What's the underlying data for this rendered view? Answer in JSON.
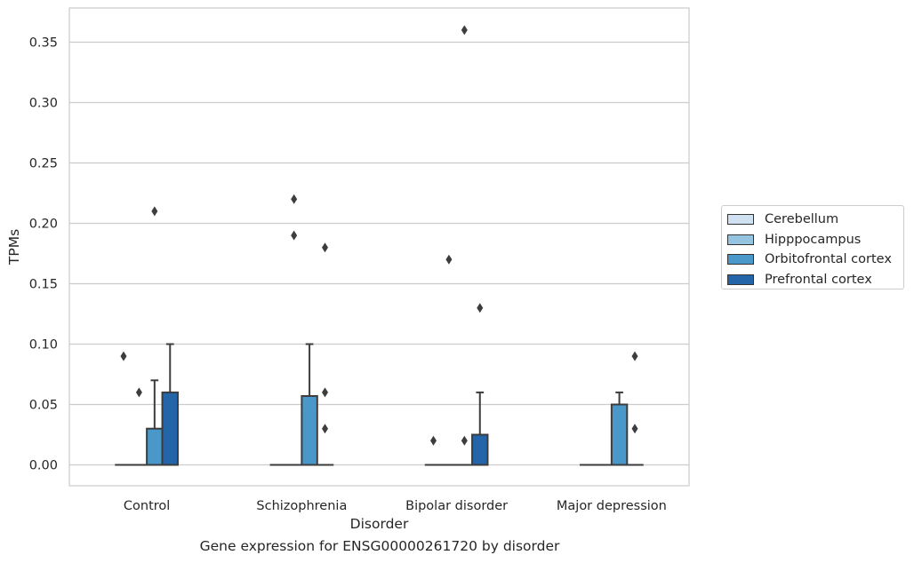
{
  "chart_data": {
    "type": "box",
    "xlabel": "Disorder",
    "ylabel": "TPMs",
    "caption": "Gene expression for ENSG00000261720 by disorder",
    "categories": [
      "Control",
      "Schizophrenia",
      "Bipolar disorder",
      "Major depression"
    ],
    "ylim": [
      -0.018,
      0.379
    ],
    "yticks": [
      0.0,
      0.05,
      0.1,
      0.15,
      0.2,
      0.25,
      0.3,
      0.35
    ],
    "ytick_labels": [
      "0.00",
      "0.05",
      "0.10",
      "0.15",
      "0.20",
      "0.25",
      "0.30",
      "0.35"
    ],
    "grid": true,
    "legend_position": "right",
    "series": [
      {
        "name": "Cerebellum",
        "color": "#d0e1f2",
        "boxes": [
          {
            "q1": 0,
            "median": 0,
            "q3": 0,
            "whisker_low": 0,
            "whisker_high": 0,
            "outliers": [
              0.09
            ]
          },
          {
            "q1": 0,
            "median": 0,
            "q3": 0,
            "whisker_low": 0,
            "whisker_high": 0,
            "outliers": []
          },
          {
            "q1": 0,
            "median": 0,
            "q3": 0,
            "whisker_low": 0,
            "whisker_high": 0,
            "outliers": [
              0.02
            ]
          },
          {
            "q1": 0,
            "median": 0,
            "q3": 0,
            "whisker_low": 0,
            "whisker_high": 0,
            "outliers": []
          }
        ]
      },
      {
        "name": "Hipppocampus",
        "color": "#94c4df",
        "boxes": [
          {
            "q1": 0,
            "median": 0,
            "q3": 0,
            "whisker_low": 0,
            "whisker_high": 0,
            "outliers": [
              0.06
            ]
          },
          {
            "q1": 0,
            "median": 0,
            "q3": 0,
            "whisker_low": 0,
            "whisker_high": 0,
            "outliers": [
              0.22,
              0.19
            ]
          },
          {
            "q1": 0,
            "median": 0,
            "q3": 0,
            "whisker_low": 0,
            "whisker_high": 0,
            "outliers": [
              0.17
            ]
          },
          {
            "q1": 0,
            "median": 0,
            "q3": 0,
            "whisker_low": 0,
            "whisker_high": 0,
            "outliers": []
          }
        ]
      },
      {
        "name": "Orbitofrontal cortex",
        "color": "#4a98c9",
        "boxes": [
          {
            "q1": 0,
            "median": 0,
            "q3": 0.03,
            "whisker_low": 0,
            "whisker_high": 0.07,
            "outliers": [
              0.21
            ]
          },
          {
            "q1": 0,
            "median": 0,
            "q3": 0.057,
            "whisker_low": 0,
            "whisker_high": 0.1,
            "outliers": []
          },
          {
            "q1": 0,
            "median": 0,
            "q3": 0,
            "whisker_low": 0,
            "whisker_high": 0,
            "outliers": [
              0.36,
              0.02
            ]
          },
          {
            "q1": 0,
            "median": 0,
            "q3": 0.05,
            "whisker_low": 0,
            "whisker_high": 0.06,
            "outliers": []
          }
        ]
      },
      {
        "name": "Prefrontal cortex",
        "color": "#2464a8",
        "boxes": [
          {
            "q1": 0,
            "median": 0,
            "q3": 0.06,
            "whisker_low": 0,
            "whisker_high": 0.1,
            "outliers": []
          },
          {
            "q1": 0,
            "median": 0,
            "q3": 0,
            "whisker_low": 0,
            "whisker_high": 0,
            "outliers": [
              0.18,
              0.06,
              0.03
            ]
          },
          {
            "q1": 0,
            "median": 0,
            "q3": 0.025,
            "whisker_low": 0,
            "whisker_high": 0.06,
            "outliers": [
              0.13
            ]
          },
          {
            "q1": 0,
            "median": 0,
            "q3": 0,
            "whisker_low": 0,
            "whisker_high": 0,
            "outliers": [
              0.09,
              0.03
            ]
          }
        ]
      }
    ]
  }
}
